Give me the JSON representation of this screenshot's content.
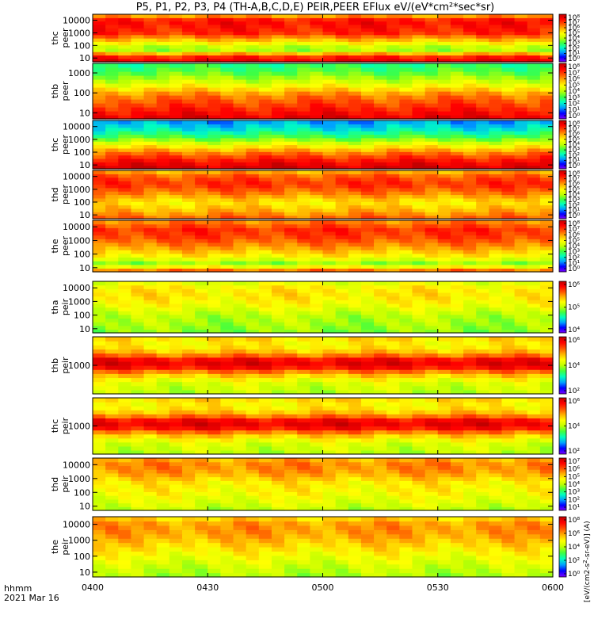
{
  "chart_data": {
    "type": "heatmap",
    "title": "P5, P1, P2, P3, P4 (TH-A,B,C,D,E) PEIR,PEER EFlux eV/(eV*cm²*sec*sr)",
    "x_tick_labels": [
      "0400",
      "0430",
      "0500",
      "0530",
      "0600"
    ],
    "x_range": [
      "04:00",
      "06:00"
    ],
    "x_footer": [
      "hhmm",
      "2021 Mar 16"
    ],
    "colorbar_label": "[eV/(cm2-s",
    "colorbar_label_rest": "-sr-eV)] (A)",
    "colormap": [
      "#7f00ff",
      "#0000ff",
      "#00a0ff",
      "#00ffc0",
      "#40ff40",
      "#c0ff00",
      "#ffff00",
      "#ffb000",
      "#ff5000",
      "#ff0000",
      "#c00000"
    ],
    "panels": [
      {
        "probe": "thc",
        "species": "peer",
        "ylim": [
          5,
          30000
        ],
        "yticks": [
          "10",
          "100",
          "1000",
          "10000"
        ],
        "cb_ticks": [
          "10⁰",
          "10¹",
          "10²",
          "10³",
          "10⁴",
          "10⁵",
          "10⁶",
          "10⁷",
          "10⁸"
        ],
        "profile": [
          [
            1.0,
            0.92
          ],
          [
            1.3,
            0.75
          ],
          [
            1.7,
            0.45
          ],
          [
            2.2,
            0.6
          ],
          [
            3.0,
            0.85
          ],
          [
            4.0,
            0.9
          ],
          [
            4.4,
            0.7
          ]
        ]
      },
      {
        "probe": "thb",
        "species": "peer",
        "ylim": [
          5,
          3000
        ],
        "yticks": [
          "10",
          "100",
          "1000"
        ],
        "cb_ticks": [
          "10⁰",
          "10¹",
          "10²",
          "10³",
          "10⁴",
          "10⁵",
          "10⁶",
          "10⁷",
          "10⁸"
        ],
        "profile": [
          [
            0.7,
            0.95
          ],
          [
            1.3,
            0.85
          ],
          [
            1.9,
            0.75
          ],
          [
            2.5,
            0.55
          ],
          [
            3.1,
            0.4
          ],
          [
            3.5,
            0.35
          ]
        ]
      },
      {
        "probe": "thc",
        "species": "peer",
        "ylim": [
          5,
          30000
        ],
        "yticks": [
          "10",
          "100",
          "1000",
          "10000"
        ],
        "cb_ticks": [
          "10⁰",
          "10¹",
          "10²",
          "10³",
          "10⁴",
          "10⁵",
          "10⁶",
          "10⁷",
          "10⁸"
        ],
        "profile": [
          [
            0.7,
            0.98
          ],
          [
            1.3,
            0.9
          ],
          [
            2.0,
            0.75
          ],
          [
            2.7,
            0.55
          ],
          [
            3.2,
            0.4
          ],
          [
            3.8,
            0.28
          ],
          [
            4.4,
            0.2
          ]
        ]
      },
      {
        "probe": "thd",
        "species": "peer",
        "ylim": [
          5,
          30000
        ],
        "yticks": [
          "10",
          "100",
          "1000",
          "10000"
        ],
        "cb_ticks": [
          "10⁰",
          "10¹",
          "10²",
          "10³",
          "10⁴",
          "10⁵",
          "10⁶",
          "10⁷",
          "10⁸"
        ],
        "profile": [
          [
            0.7,
            0.8
          ],
          [
            1.3,
            0.7
          ],
          [
            2.0,
            0.62
          ],
          [
            2.7,
            0.75
          ],
          [
            3.4,
            0.85
          ],
          [
            4.0,
            0.8
          ],
          [
            4.4,
            0.7
          ]
        ]
      },
      {
        "probe": "the",
        "species": "peer",
        "ylim": [
          5,
          30000
        ],
        "yticks": [
          "10",
          "100",
          "1000",
          "10000"
        ],
        "cb_ticks": [
          "10⁰",
          "10¹",
          "10²",
          "10³",
          "10⁴",
          "10⁵",
          "10⁶",
          "10⁷",
          "10⁸"
        ],
        "profile": [
          [
            0.7,
            0.85
          ],
          [
            1.3,
            0.45
          ],
          [
            1.8,
            0.6
          ],
          [
            2.5,
            0.72
          ],
          [
            3.2,
            0.82
          ],
          [
            3.8,
            0.85
          ],
          [
            4.4,
            0.75
          ]
        ]
      },
      {
        "probe": "tha",
        "species": "peir",
        "ylim": [
          5,
          30000
        ],
        "yticks": [
          "10",
          "100",
          "1000",
          "10000"
        ],
        "cb_ticks": [
          "10⁴",
          "10⁵",
          "10⁶"
        ],
        "profile": [
          [
            0.7,
            0.45
          ],
          [
            1.3,
            0.48
          ],
          [
            2.0,
            0.5
          ],
          [
            2.7,
            0.58
          ],
          [
            3.4,
            0.63
          ],
          [
            4.0,
            0.62
          ],
          [
            4.4,
            0.55
          ]
        ]
      },
      {
        "probe": "thb",
        "species": "peir",
        "ylim": [
          200,
          5000
        ],
        "yticks": [
          "1000"
        ],
        "cb_ticks": [
          "10²",
          "10⁴",
          "10⁶"
        ],
        "profile": [
          [
            2.3,
            0.5
          ],
          [
            2.6,
            0.55
          ],
          [
            2.8,
            0.7
          ],
          [
            3.0,
            0.95
          ],
          [
            3.15,
            0.9
          ],
          [
            3.3,
            0.7
          ],
          [
            3.5,
            0.6
          ],
          [
            3.7,
            0.65
          ]
        ]
      },
      {
        "probe": "thc",
        "species": "peir",
        "ylim": [
          200,
          5000
        ],
        "yticks": [
          "1000"
        ],
        "cb_ticks": [
          "10²",
          "10⁴",
          "10⁶"
        ],
        "profile": [
          [
            2.3,
            0.5
          ],
          [
            2.6,
            0.55
          ],
          [
            2.8,
            0.7
          ],
          [
            3.0,
            0.95
          ],
          [
            3.15,
            0.9
          ],
          [
            3.3,
            0.7
          ],
          [
            3.5,
            0.6
          ],
          [
            3.7,
            0.65
          ]
        ]
      },
      {
        "probe": "thd",
        "species": "peir",
        "ylim": [
          5,
          30000
        ],
        "yticks": [
          "10",
          "100",
          "1000",
          "10000"
        ],
        "cb_ticks": [
          "10¹",
          "10²",
          "10³",
          "10⁴",
          "10⁵",
          "10⁶",
          "10⁷"
        ],
        "profile": [
          [
            0.7,
            0.5
          ],
          [
            1.3,
            0.55
          ],
          [
            2.0,
            0.6
          ],
          [
            2.7,
            0.62
          ],
          [
            3.4,
            0.72
          ],
          [
            4.0,
            0.75
          ],
          [
            4.4,
            0.7
          ]
        ]
      },
      {
        "probe": "the",
        "species": "peir",
        "ylim": [
          5,
          30000
        ],
        "yticks": [
          "10",
          "100",
          "1000",
          "10000"
        ],
        "cb_ticks": [
          "10⁰",
          "10²",
          "10⁴",
          "10⁶",
          "10⁸"
        ],
        "profile": [
          [
            0.7,
            0.48
          ],
          [
            1.3,
            0.52
          ],
          [
            2.0,
            0.58
          ],
          [
            2.7,
            0.65
          ],
          [
            3.4,
            0.72
          ],
          [
            4.0,
            0.73
          ],
          [
            4.4,
            0.65
          ]
        ]
      }
    ]
  }
}
